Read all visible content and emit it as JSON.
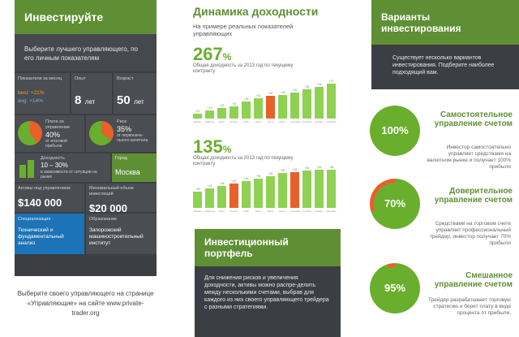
{
  "left": {
    "title": "Инвестируйте",
    "subtitle": "Выберите лучшего управляющего, по его личным показателям",
    "monthly_label": "Показатели за месяц",
    "best_line": "best: +21%",
    "avg_line": "avg: +14%",
    "experience_label": "Опыт",
    "experience_value": "8",
    "experience_unit": "лет",
    "age_label": "Возраст",
    "age_value": "50",
    "age_unit": "лет",
    "fee_label": "Плата за управление",
    "fee_value": "40%",
    "fee_note": "от итоговой прибыли",
    "risk_label": "Риск",
    "risk_value": "35%",
    "risk_note": "от первонача-льного капитала",
    "yield_label": "Доходность",
    "yield_value": "10 – 30%",
    "yield_note": "в зависимости от ситуации на рынке",
    "city_label": "Город",
    "city_value": "Москва",
    "assets_label": "Активы под управлением",
    "assets_value": "$140 000",
    "min_label": "Минимальный объем инвестиций",
    "min_value": "$20 000",
    "spec_label": "Специализация",
    "spec_value": "Технический и фундаментальный анализ",
    "edu_label": "Образование",
    "edu_value": "Запорожский машиностроительный институт"
  },
  "footer": "Выберите своего управляющего на странице «Управляющие» на сайте www.private-trader.org",
  "center": {
    "title": "Динамика доходности",
    "subtitle": "На примере реальных показателей управляющих",
    "num1": "267",
    "pct": "%",
    "desc1": "Общая доходность за 2013 год по текущему контракту",
    "num2": "135",
    "desc2": "Общая доходность за 2013 год по текущему контракту",
    "portfolio_title": "Инвестиционный портфель",
    "portfolio_text": "Для снижения рисков и увеличения доходности, активы можно распре-делить между несколькими счетами, выбрав для каждого из них своего управляющего трейдера с разными стратегиями."
  },
  "chart_data": [
    {
      "type": "bar",
      "title": "267%",
      "categories": [
        "Январь",
        "Февраль",
        "Март",
        "Апрель",
        "Май",
        "Июнь",
        "Июль",
        "Август",
        "Сентябрь",
        "Октябрь",
        "Ноябрь",
        "Декабрь"
      ],
      "values": [
        10,
        16,
        22,
        25,
        35,
        40,
        46,
        48,
        52,
        58,
        64,
        70
      ],
      "highlight_index": 6,
      "ylim": [
        0,
        75
      ]
    },
    {
      "type": "bar",
      "title": "135%",
      "categories": [
        "Январь",
        "Февраль",
        "Март",
        "Апрель",
        "Май",
        "Июнь",
        "Июль",
        "Август",
        "Сентябрь",
        "Октябрь",
        "Ноябрь",
        "Декабрь"
      ],
      "values": [
        28,
        34,
        38,
        42,
        46,
        50,
        54,
        60,
        62,
        65,
        66,
        66
      ],
      "highlight_index": [
        3,
        8
      ],
      "ylim": [
        0,
        70
      ]
    }
  ],
  "right": {
    "title": "Варианты инвестирования",
    "subtitle": "Существует несколько вариантов инвестирования. Подберите наиболее подходящий вам.",
    "opt1_title": "Самостоятельное управление счетом",
    "opt1_value": "100%",
    "opt1_fraction": 1.0,
    "opt1_desc": "Инвестор самостоятельно управляет средствами на валютном рынке и получает 100% прибыли",
    "opt2_title": "Доверительное управление счетом",
    "opt2_value": "70%",
    "opt2_fraction": 0.7,
    "opt2_desc": "Средствами на торговом счете управляет профессиональный трейдер, инвестор получает 70% прибыли",
    "opt3_title": "Смешанное управление счетом",
    "opt3_value": "95%",
    "opt3_fraction": 0.95,
    "opt3_desc": "Трейдер разрабатывает торговую стратегию и берет плату в виде процента от прибыли,"
  },
  "colors": {
    "green": "#5f8f34",
    "lightgreen": "#6aae2e",
    "orange": "#e8602a",
    "dark": "#3b3e42",
    "blue": "#1d73b7"
  }
}
